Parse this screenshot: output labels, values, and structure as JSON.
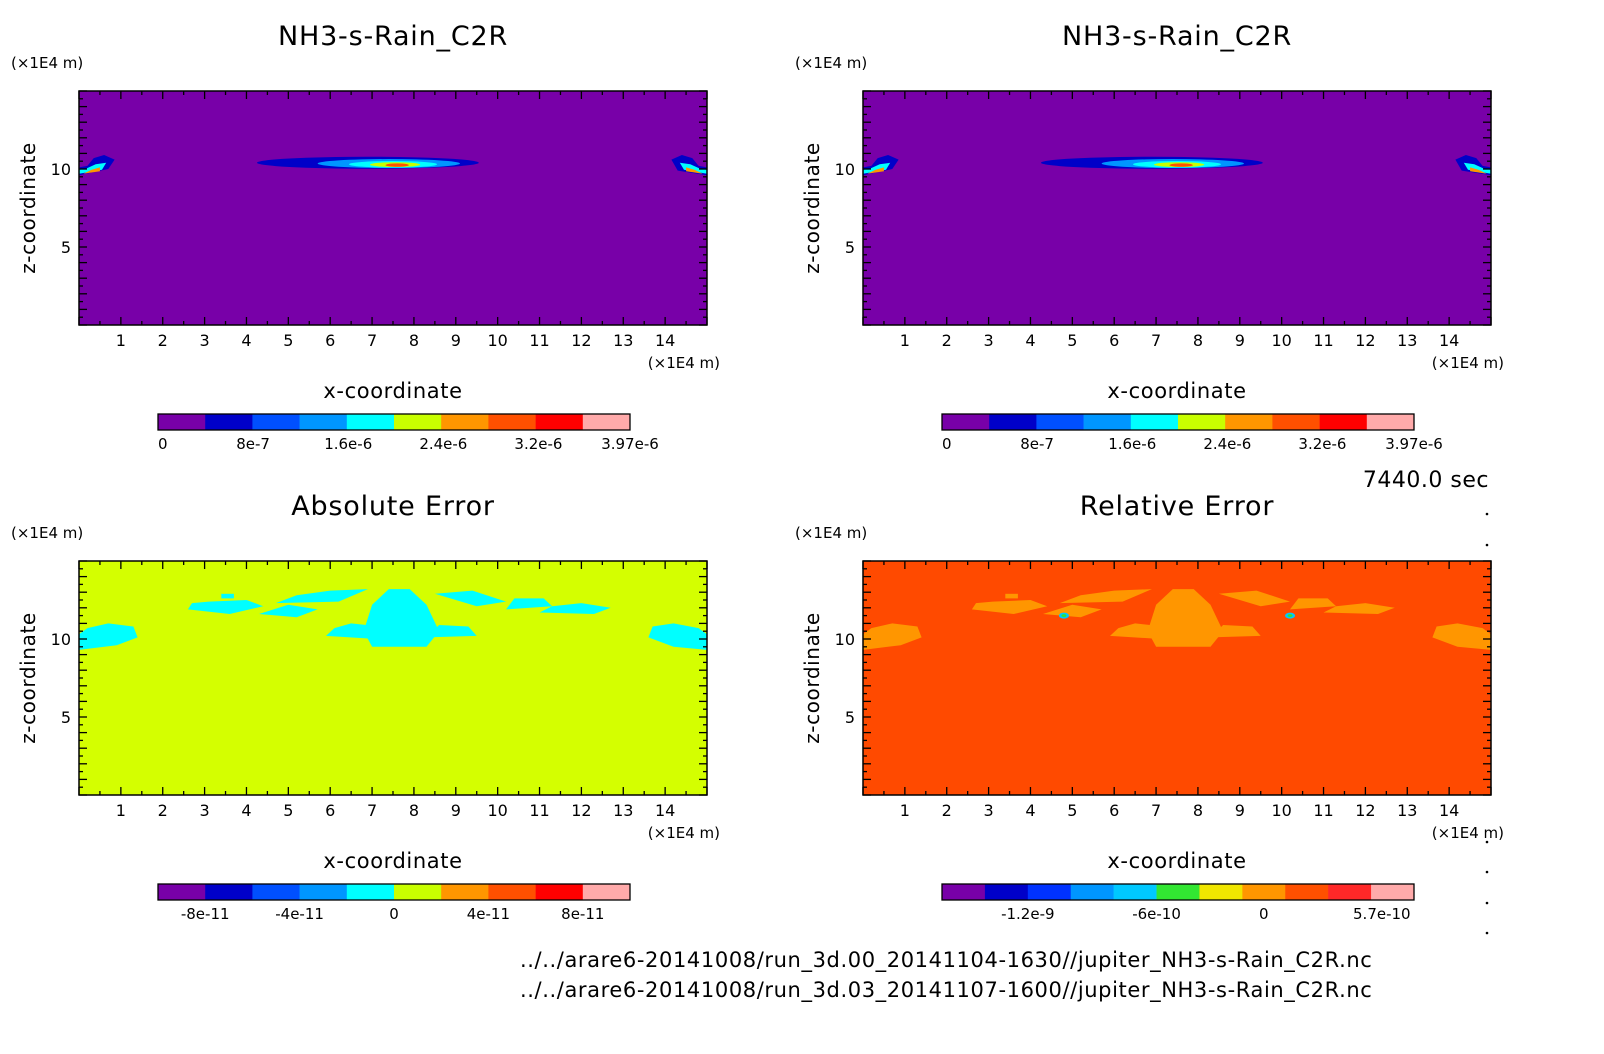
{
  "time_label": "7440.0 sec",
  "file_paths": [
    "../../arare6-20141008/run_3d.00_20141104-1630//jupiter_NH3-s-Rain_C2R.nc",
    "../../arare6-20141008/run_3d.03_20141107-1600//jupiter_NH3-s-Rain_C2R.nc"
  ],
  "chart_data": [
    {
      "type": "heatmap",
      "title": "NH3-s-Rain_C2R",
      "xlabel": "x-coordinate",
      "ylabel": "z-coordinate",
      "x_unit": "(×1E4 m)",
      "z_unit": "(×1E4 m)",
      "xlim": [
        0,
        15
      ],
      "zlim": [
        0,
        15
      ],
      "xticks": [
        "1",
        "2",
        "3",
        "4",
        "5",
        "6",
        "7",
        "8",
        "9",
        "10",
        "11",
        "12",
        "13",
        "14"
      ],
      "zticks": [
        "5",
        "10"
      ],
      "background_color": "#7800a8",
      "colorbar": {
        "colors": [
          "#7800a8",
          "#0000c8",
          "#0050ff",
          "#0096ff",
          "#00ffff",
          "#c8ff00",
          "#ff9600",
          "#ff5000",
          "#ff0000",
          "#ffaaaa"
        ],
        "labels": [
          "0",
          "8e-7",
          "1.6e-6",
          "2.4e-6",
          "3.2e-6",
          "3.97e-6"
        ],
        "range": [
          0,
          3.97e-06
        ]
      },
      "features": [
        "cloud near x=7.6, z=10.3 (peak ~3.97e-6)",
        "edge features at x=0.5 and x=14.5, z=10"
      ]
    },
    {
      "type": "heatmap",
      "title": "NH3-s-Rain_C2R",
      "xlabel": "x-coordinate",
      "ylabel": "z-coordinate",
      "x_unit": "(×1E4 m)",
      "z_unit": "(×1E4 m)",
      "xlim": [
        0,
        15
      ],
      "zlim": [
        0,
        15
      ],
      "xticks": [
        "1",
        "2",
        "3",
        "4",
        "5",
        "6",
        "7",
        "8",
        "9",
        "10",
        "11",
        "12",
        "13",
        "14"
      ],
      "zticks": [
        "5",
        "10"
      ],
      "background_color": "#7800a8",
      "colorbar": {
        "colors": [
          "#7800a8",
          "#0000c8",
          "#0050ff",
          "#0096ff",
          "#00ffff",
          "#c8ff00",
          "#ff9600",
          "#ff5000",
          "#ff0000",
          "#ffaaaa"
        ],
        "labels": [
          "0",
          "8e-7",
          "1.6e-6",
          "2.4e-6",
          "3.2e-6",
          "3.97e-6"
        ],
        "range": [
          0,
          3.97e-06
        ]
      },
      "features": [
        "cloud near x=7.6, z=10.3 (peak ~3.97e-6)",
        "edge features at x=0.5 and x=14.5, z=10"
      ]
    },
    {
      "type": "heatmap",
      "title": "Absolute Error",
      "xlabel": "x-coordinate",
      "ylabel": "z-coordinate",
      "x_unit": "(×1E4 m)",
      "z_unit": "(×1E4 m)",
      "xlim": [
        0,
        15
      ],
      "zlim": [
        0,
        15
      ],
      "xticks": [
        "1",
        "2",
        "3",
        "4",
        "5",
        "6",
        "7",
        "8",
        "9",
        "10",
        "11",
        "12",
        "13",
        "14"
      ],
      "zticks": [
        "5",
        "10"
      ],
      "background_color": "#d4ff00",
      "colorbar": {
        "colors": [
          "#7800a8",
          "#0000c8",
          "#0050ff",
          "#0096ff",
          "#00ffff",
          "#c8ff00",
          "#ff9600",
          "#ff5000",
          "#ff0000",
          "#ffaaaa"
        ],
        "labels": [
          "-8e-11",
          "-4e-11",
          "0",
          "4e-11",
          "8e-11"
        ]
      },
      "features": [
        "small negative patches (cyan) around z=10-13"
      ]
    },
    {
      "type": "heatmap",
      "title": "Relative Error",
      "xlabel": "x-coordinate",
      "ylabel": "z-coordinate",
      "x_unit": "(×1E4 m)",
      "z_unit": "(×1E4 m)",
      "xlim": [
        0,
        15
      ],
      "zlim": [
        0,
        15
      ],
      "xticks": [
        "1",
        "2",
        "3",
        "4",
        "5",
        "6",
        "7",
        "8",
        "9",
        "10",
        "11",
        "12",
        "13",
        "14"
      ],
      "zticks": [
        "5",
        "10"
      ],
      "background_color": "#ff4a00",
      "colorbar": {
        "colors": [
          "#7800a8",
          "#0000c8",
          "#0032ff",
          "#0096ff",
          "#00c8ff",
          "#32e632",
          "#f0e600",
          "#ff9600",
          "#ff5000",
          "#ff2828",
          "#ffaaaa"
        ],
        "labels": [
          "-1.2e-9",
          "-6e-10",
          "0",
          "5.7e-10"
        ]
      },
      "features": [
        "small negative patches (orange) around z=10-13"
      ]
    }
  ]
}
